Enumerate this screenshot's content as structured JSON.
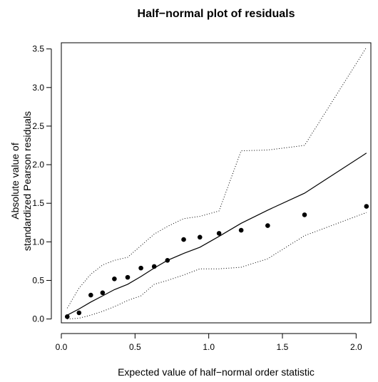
{
  "chart_data": {
    "type": "scatter",
    "title": "Half−normal plot of residuals",
    "xlabel": "Expected value of half−normal order statistic",
    "ylabel_lines": [
      "Absolute value of",
      "standardized Pearson residuals"
    ],
    "xlim": [
      0.0,
      2.1
    ],
    "ylim": [
      -0.05,
      3.58
    ],
    "x_ticks": [
      0.0,
      0.5,
      1.0,
      1.5,
      2.0
    ],
    "x_tick_labels": [
      "0.0",
      "0.5",
      "1.0",
      "1.5",
      "2.0"
    ],
    "y_ticks": [
      0.0,
      0.5,
      1.0,
      1.5,
      2.0,
      2.5,
      3.0,
      3.5
    ],
    "y_tick_labels": [
      "0.0",
      "0.5",
      "1.0",
      "1.5",
      "2.0",
      "2.5",
      "3.0",
      "3.5"
    ],
    "grid": false,
    "series": [
      {
        "kind": "points",
        "x": [
          0.04,
          0.12,
          0.2,
          0.28,
          0.36,
          0.45,
          0.54,
          0.63,
          0.72,
          0.83,
          0.94,
          1.07,
          1.22,
          1.4,
          1.65,
          2.07
        ],
        "y": [
          0.03,
          0.08,
          0.31,
          0.34,
          0.52,
          0.54,
          0.66,
          0.68,
          0.76,
          1.03,
          1.06,
          1.11,
          1.15,
          1.21,
          1.35,
          1.46
        ]
      },
      {
        "kind": "solid-line",
        "x": [
          0.04,
          0.12,
          0.2,
          0.28,
          0.36,
          0.45,
          0.54,
          0.63,
          0.72,
          0.83,
          0.94,
          1.07,
          1.22,
          1.4,
          1.65,
          2.07
        ],
        "y": [
          0.05,
          0.13,
          0.22,
          0.3,
          0.38,
          0.45,
          0.55,
          0.66,
          0.76,
          0.85,
          0.93,
          1.07,
          1.24,
          1.41,
          1.63,
          2.15
        ]
      },
      {
        "kind": "dotted-upper",
        "x": [
          0.04,
          0.12,
          0.2,
          0.28,
          0.36,
          0.45,
          0.54,
          0.63,
          0.72,
          0.83,
          0.94,
          1.07,
          1.22,
          1.4,
          1.65,
          2.07
        ],
        "y": [
          0.14,
          0.4,
          0.58,
          0.7,
          0.76,
          0.8,
          0.95,
          1.1,
          1.2,
          1.3,
          1.33,
          1.4,
          2.18,
          2.19,
          2.25,
          3.52
        ]
      },
      {
        "kind": "dotted-lower",
        "x": [
          0.04,
          0.12,
          0.2,
          0.28,
          0.36,
          0.45,
          0.54,
          0.63,
          0.72,
          0.83,
          0.94,
          1.07,
          1.22,
          1.4,
          1.65,
          2.07
        ],
        "y": [
          0.0,
          0.01,
          0.05,
          0.1,
          0.16,
          0.24,
          0.3,
          0.45,
          0.5,
          0.57,
          0.65,
          0.65,
          0.67,
          0.78,
          1.08,
          1.38
        ]
      }
    ]
  }
}
